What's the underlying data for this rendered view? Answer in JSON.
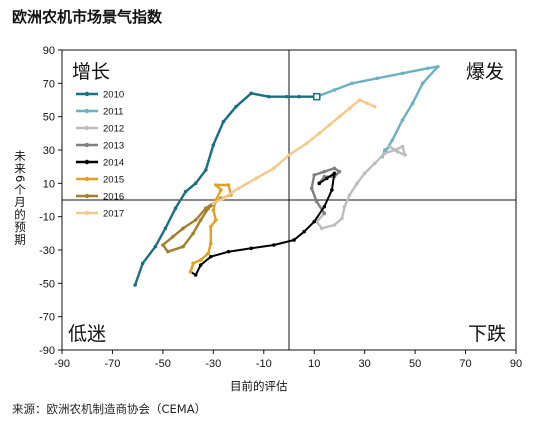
{
  "title": "欧洲农机市场景气指数",
  "source": "来源：欧洲农机制造商协会（CEMA）",
  "chart_data": {
    "type": "line",
    "title": "欧洲农机市场景气指数",
    "xlabel": "目前的评估",
    "ylabel": "未来6个月的预期",
    "xlim": [
      -90,
      90
    ],
    "ylim": [
      -90,
      90
    ],
    "x_ticks": [
      "-90",
      "-70",
      "-50",
      "-30",
      "-10",
      "10",
      "30",
      "50",
      "70",
      "90"
    ],
    "y_ticks": [
      "90",
      "70",
      "50",
      "30",
      "10",
      "-10",
      "-30",
      "-50",
      "-70",
      "-90"
    ],
    "grid": false,
    "legend_position": "top-left",
    "quadrants": {
      "top_left": "增长",
      "top_right": "爆发",
      "bottom_left": "低迷",
      "bottom_right": "下跌"
    },
    "series": [
      {
        "name": "2010",
        "color": "#1b6f7f",
        "points": [
          [
            -61,
            -51
          ],
          [
            -58,
            -38
          ],
          [
            -53,
            -28
          ],
          [
            -49,
            -17
          ],
          [
            -45,
            -5
          ],
          [
            -41,
            5
          ],
          [
            -37,
            10
          ],
          [
            -33,
            18
          ],
          [
            -30,
            33
          ],
          [
            -26,
            47
          ],
          [
            -21,
            56
          ],
          [
            -15,
            64
          ],
          [
            -8,
            62
          ],
          [
            -1,
            62
          ],
          [
            4,
            62
          ],
          [
            11,
            62
          ]
        ]
      },
      {
        "name": "2011",
        "color": "#6db0c4",
        "points": [
          [
            11,
            62
          ],
          [
            18,
            66
          ],
          [
            25,
            70
          ],
          [
            35,
            73
          ],
          [
            45,
            76
          ],
          [
            55,
            79
          ],
          [
            59,
            80
          ],
          [
            53,
            70
          ],
          [
            49,
            58
          ],
          [
            45,
            48
          ],
          [
            41,
            36
          ],
          [
            37,
            26
          ],
          [
            38,
            30
          ],
          [
            40,
            32
          ]
        ]
      },
      {
        "name": "2012",
        "color": "#bdbdbd",
        "points": [
          [
            40,
            32
          ],
          [
            43,
            29
          ],
          [
            46,
            27
          ],
          [
            45,
            32
          ],
          [
            42,
            30
          ],
          [
            38,
            28
          ],
          [
            34,
            22
          ],
          [
            30,
            16
          ],
          [
            27,
            10
          ],
          [
            24,
            3
          ],
          [
            22,
            -4
          ],
          [
            21,
            -11
          ],
          [
            18,
            -15
          ],
          [
            13,
            -17
          ],
          [
            11,
            -13
          ],
          [
            14,
            -8
          ]
        ]
      },
      {
        "name": "2013",
        "color": "#7f7f7f",
        "points": [
          [
            14,
            -8
          ],
          [
            11,
            -1
          ],
          [
            9,
            7
          ],
          [
            10,
            15
          ],
          [
            14,
            17
          ],
          [
            18,
            19
          ],
          [
            20,
            17
          ],
          [
            18,
            14
          ],
          [
            14,
            14
          ],
          [
            12,
            10
          ]
        ]
      },
      {
        "name": "2014",
        "color": "#000000",
        "points": [
          [
            12,
            10
          ],
          [
            15,
            13
          ],
          [
            18,
            16
          ],
          [
            17,
            6
          ],
          [
            14,
            -4
          ],
          [
            10,
            -13
          ],
          [
            6,
            -19
          ],
          [
            2,
            -24
          ],
          [
            -6,
            -27
          ],
          [
            -15,
            -29
          ],
          [
            -24,
            -31
          ],
          [
            -31,
            -34
          ],
          [
            -35,
            -39
          ],
          [
            -37,
            -45
          ],
          [
            -39,
            -43
          ]
        ]
      },
      {
        "name": "2015",
        "color": "#e0a020",
        "points": [
          [
            -39,
            -43
          ],
          [
            -38,
            -38
          ],
          [
            -35,
            -36
          ],
          [
            -32,
            -32
          ],
          [
            -31,
            -26
          ],
          [
            -31,
            -16
          ],
          [
            -29,
            -12
          ],
          [
            -30,
            -6
          ],
          [
            -29,
            0
          ],
          [
            -27,
            6
          ],
          [
            -29,
            9
          ],
          [
            -24,
            9
          ],
          [
            -23,
            3
          ],
          [
            -27,
            1
          ]
        ]
      },
      {
        "name": "2016",
        "color": "#a0802a",
        "points": [
          [
            -27,
            1
          ],
          [
            -32,
            -5
          ],
          [
            -35,
            -12
          ],
          [
            -38,
            -20
          ],
          [
            -42,
            -28
          ],
          [
            -48,
            -31
          ],
          [
            -50,
            -27
          ],
          [
            -46,
            -22
          ],
          [
            -42,
            -17
          ],
          [
            -37,
            -12
          ],
          [
            -33,
            -5
          ],
          [
            -30,
            -2
          ]
        ]
      },
      {
        "name": "2017",
        "color": "#f4c98a",
        "points": [
          [
            -30,
            -2
          ],
          [
            -26,
            1
          ],
          [
            -20,
            7
          ],
          [
            -13,
            13
          ],
          [
            -6,
            19
          ],
          [
            0,
            27
          ],
          [
            7,
            34
          ],
          [
            12,
            40
          ],
          [
            16,
            45
          ],
          [
            20,
            50
          ],
          [
            24,
            55
          ],
          [
            28,
            60
          ],
          [
            31,
            58
          ],
          [
            34,
            56
          ]
        ]
      }
    ]
  }
}
